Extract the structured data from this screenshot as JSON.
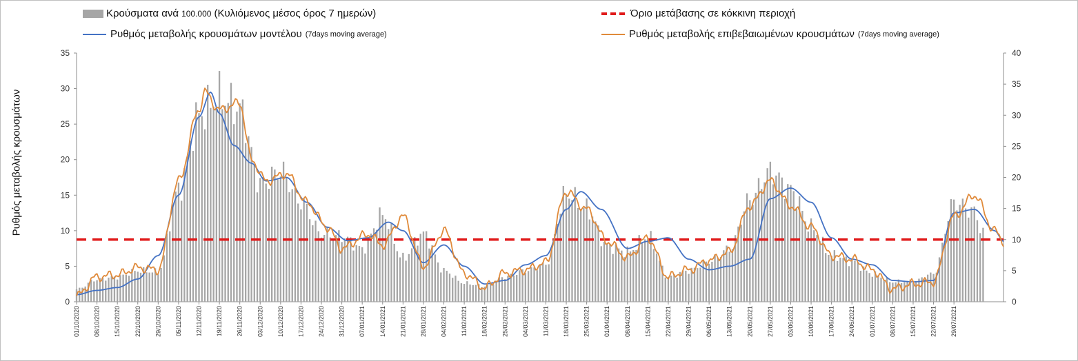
{
  "legend": {
    "cases": {
      "label": "Κρούσματα ανά",
      "num": "100.000",
      "rest": "(Κυλιόμενος μέσος όρος 7 ημερών)"
    },
    "threshold": {
      "label": "Όριο μετάβασης σε κόκκινη περιοχή"
    },
    "model": {
      "label": "Ρυθμός μεταβολής κρουσμάτων μοντέλου",
      "note": "(7days moving average)"
    },
    "confirmed": {
      "label": "Ρυθμός μεταβολής επιβεβαιωμένων κρουσμάτων",
      "note": "(7days moving average)"
    }
  },
  "chart_data": {
    "type": "bar",
    "ylabel": "Ρυθμός μεταβολής κρουσμάτων",
    "ylim_left": [
      0,
      35
    ],
    "yticks_left": [
      0,
      5,
      10,
      15,
      20,
      25,
      30,
      35
    ],
    "ylim_right": [
      0,
      40
    ],
    "yticks_right": [
      0,
      5,
      10,
      15,
      20,
      25,
      30,
      35,
      40
    ],
    "x_start": "2020-10-01",
    "x_tick_labels": [
      "01/10/2020",
      "08/10/2020",
      "15/10/2020",
      "22/10/2020",
      "29/10/2020",
      "05/11/2020",
      "12/11/2020",
      "19/11/2020",
      "26/11/2020",
      "03/12/2020",
      "10/12/2020",
      "17/12/2020",
      "24/12/2020",
      "31/12/2020",
      "07/01/2021",
      "14/01/2021",
      "21/01/2021",
      "28/01/2021",
      "04/02/2021",
      "11/02/2021",
      "18/02/2021",
      "25/02/2021",
      "04/03/2021",
      "11/03/2021",
      "18/03/2021",
      "25/03/2021",
      "01/04/2021",
      "08/04/2021",
      "15/04/2021",
      "22/04/2021",
      "29/04/2021",
      "06/05/2021",
      "13/05/2021",
      "20/05/2021",
      "27/05/2021",
      "03/06/2021",
      "10/06/2021",
      "17/06/2021",
      "24/06/2021",
      "01/07/2021",
      "08/07/2021",
      "15/07/2021",
      "22/07/2021",
      "29/07/2021"
    ],
    "threshold_right_axis": 10,
    "threshold_color": "#e01a1a",
    "bar_color": "#a6a6a6",
    "series": [
      {
        "name": "Κρούσματα ανά 100.000 (Κυλιόμενος μέσος όρος 7 ημερών)",
        "kind": "bar",
        "axis": "right",
        "color": "#a6a6a6",
        "points": [
          [
            0,
            2
          ],
          [
            7,
            3.6
          ],
          [
            14,
            4
          ],
          [
            21,
            5
          ],
          [
            28,
            4.8
          ],
          [
            35,
            18
          ],
          [
            42,
            30
          ],
          [
            49,
            33
          ],
          [
            56,
            31
          ],
          [
            63,
            19
          ],
          [
            70,
            21
          ],
          [
            77,
            16
          ],
          [
            84,
            11
          ],
          [
            91,
            10.5
          ],
          [
            98,
            8.5
          ],
          [
            105,
            14
          ],
          [
            112,
            7
          ],
          [
            119,
            11
          ],
          [
            126,
            5
          ],
          [
            133,
            3
          ],
          [
            140,
            2.5
          ],
          [
            147,
            4
          ],
          [
            154,
            5
          ],
          [
            161,
            6
          ],
          [
            168,
            17.5
          ],
          [
            175,
            15
          ],
          [
            182,
            9
          ],
          [
            189,
            8
          ],
          [
            196,
            10.5
          ],
          [
            203,
            4
          ],
          [
            210,
            5
          ],
          [
            217,
            6.5
          ],
          [
            224,
            8.5
          ],
          [
            231,
            16.5
          ],
          [
            238,
            21
          ],
          [
            245,
            18
          ],
          [
            252,
            12
          ],
          [
            259,
            7.5
          ],
          [
            266,
            6.5
          ],
          [
            273,
            4.5
          ],
          [
            280,
            3.2
          ],
          [
            287,
            3.3
          ],
          [
            294,
            4.5
          ],
          [
            301,
            16
          ],
          [
            308,
            14.5
          ],
          [
            311,
            11
          ]
        ]
      },
      {
        "name": "Ρυθμός μεταβολής κρουσμάτων μοντέλου",
        "kind": "line",
        "axis": "left",
        "color": "#4472c4",
        "points": [
          [
            0,
            1
          ],
          [
            7,
            1.6
          ],
          [
            14,
            2
          ],
          [
            21,
            3.2
          ],
          [
            28,
            6.5
          ],
          [
            35,
            15
          ],
          [
            42,
            26
          ],
          [
            46,
            29.5
          ],
          [
            49,
            26.5
          ],
          [
            54,
            22
          ],
          [
            60,
            19.5
          ],
          [
            65,
            17
          ],
          [
            72,
            17.5
          ],
          [
            79,
            14
          ],
          [
            86,
            10.5
          ],
          [
            93,
            8.6
          ],
          [
            100,
            9
          ],
          [
            107,
            11.2
          ],
          [
            112,
            10
          ],
          [
            119,
            5.5
          ],
          [
            126,
            8
          ],
          [
            133,
            5
          ],
          [
            140,
            2.5
          ],
          [
            147,
            3
          ],
          [
            154,
            5.2
          ],
          [
            161,
            6.5
          ],
          [
            168,
            13
          ],
          [
            173,
            15.5
          ],
          [
            180,
            13
          ],
          [
            189,
            7.5
          ],
          [
            196,
            8.5
          ],
          [
            203,
            9
          ],
          [
            210,
            6
          ],
          [
            217,
            4.5
          ],
          [
            224,
            5
          ],
          [
            231,
            6
          ],
          [
            238,
            14.5
          ],
          [
            245,
            16
          ],
          [
            252,
            14
          ],
          [
            259,
            9
          ],
          [
            266,
            6
          ],
          [
            273,
            5.2
          ],
          [
            280,
            3
          ],
          [
            287,
            2.8
          ],
          [
            294,
            3
          ],
          [
            301,
            12.5
          ],
          [
            308,
            13
          ],
          [
            315,
            10
          ],
          [
            318,
            8.5
          ]
        ]
      },
      {
        "name": "Ρυθμός μεταβολής επιβεβαιωμένων κρουσμάτων",
        "kind": "line",
        "axis": "left",
        "color": "#e08a3a",
        "points": [
          [
            0,
            0.8
          ],
          [
            7,
            3.5
          ],
          [
            14,
            3.8
          ],
          [
            21,
            4.8
          ],
          [
            28,
            4.5
          ],
          [
            35,
            17
          ],
          [
            42,
            27
          ],
          [
            44,
            29.5
          ],
          [
            49,
            27
          ],
          [
            56,
            28
          ],
          [
            60,
            20
          ],
          [
            65,
            17
          ],
          [
            72,
            18
          ],
          [
            79,
            14
          ],
          [
            86,
            10.5
          ],
          [
            91,
            7.5
          ],
          [
            100,
            9.5
          ],
          [
            105,
            8
          ],
          [
            112,
            12
          ],
          [
            119,
            5
          ],
          [
            126,
            10
          ],
          [
            133,
            4
          ],
          [
            140,
            2
          ],
          [
            147,
            4
          ],
          [
            154,
            4.5
          ],
          [
            161,
            5.5
          ],
          [
            168,
            15.5
          ],
          [
            175,
            13
          ],
          [
            182,
            8.5
          ],
          [
            189,
            6.2
          ],
          [
            196,
            9
          ],
          [
            203,
            3.5
          ],
          [
            210,
            4.5
          ],
          [
            217,
            5.8
          ],
          [
            224,
            7
          ],
          [
            231,
            13.5
          ],
          [
            238,
            17
          ],
          [
            245,
            13.5
          ],
          [
            252,
            10.5
          ],
          [
            259,
            6.5
          ],
          [
            266,
            6
          ],
          [
            273,
            4.5
          ],
          [
            280,
            1.8
          ],
          [
            287,
            2.5
          ],
          [
            294,
            2.8
          ],
          [
            301,
            12
          ],
          [
            308,
            15
          ],
          [
            315,
            10
          ],
          [
            318,
            8.5
          ]
        ]
      }
    ]
  }
}
